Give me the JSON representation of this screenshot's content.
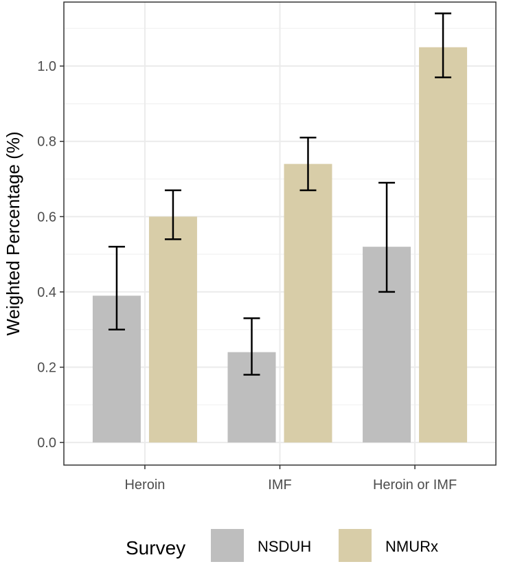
{
  "chart_data": {
    "type": "bar",
    "title": "",
    "xlabel": "",
    "ylabel": "Weighted Percentage (%)",
    "ylim": [
      -0.06,
      1.17
    ],
    "yticks": [
      0.0,
      0.2,
      0.4,
      0.6,
      0.8,
      1.0
    ],
    "ytick_labels": [
      "0.0",
      "0.2",
      "0.4",
      "0.6",
      "0.8",
      "1.0"
    ],
    "categories": [
      "Heroin",
      "IMF",
      "Heroin or IMF"
    ],
    "series": [
      {
        "name": "NSDUH",
        "color": "#bebebe",
        "values": [
          0.39,
          0.24,
          0.52
        ],
        "ci_low": [
          0.3,
          0.18,
          0.4
        ],
        "ci_high": [
          0.52,
          0.33,
          0.69
        ]
      },
      {
        "name": "NMURx",
        "color": "#d8cda8",
        "values": [
          0.6,
          0.74,
          1.05
        ],
        "ci_low": [
          0.54,
          0.67,
          0.97
        ],
        "ci_high": [
          0.67,
          0.81,
          1.14
        ]
      }
    ],
    "grid": true,
    "legend_title": "Survey",
    "legend_position": "bottom",
    "colors": {
      "panel_border": "#333333",
      "grid_major": "#ebebeb",
      "grid_minor": "#f4f4f4",
      "errorbar": "#000000"
    }
  }
}
